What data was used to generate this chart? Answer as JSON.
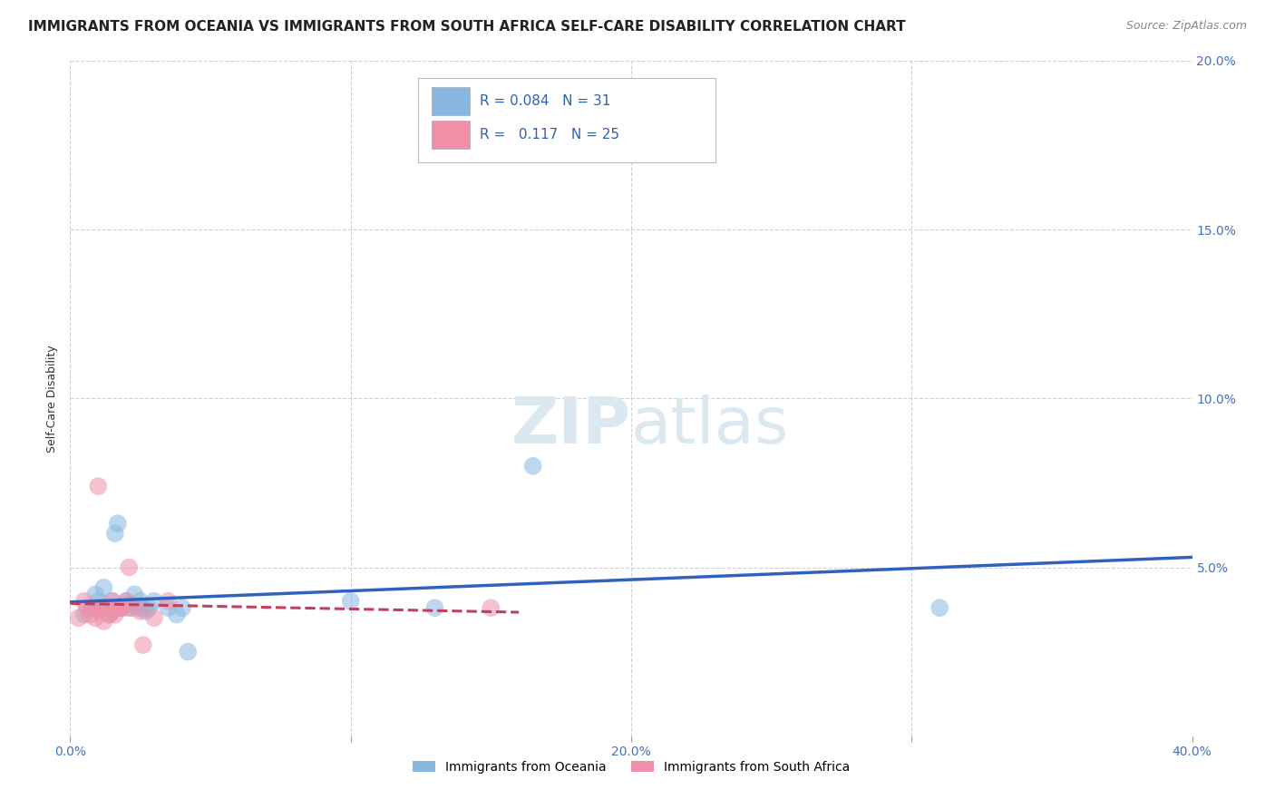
{
  "title": "IMMIGRANTS FROM OCEANIA VS IMMIGRANTS FROM SOUTH AFRICA SELF-CARE DISABILITY CORRELATION CHART",
  "source": "Source: ZipAtlas.com",
  "ylabel": "Self-Care Disability",
  "xlim": [
    0.0,
    0.4
  ],
  "ylim": [
    0.0,
    0.2
  ],
  "xticks": [
    0.0,
    0.1,
    0.2,
    0.3,
    0.4
  ],
  "yticks": [
    0.0,
    0.05,
    0.1,
    0.15,
    0.2
  ],
  "xtick_labels": [
    "0.0%",
    "",
    "20.0%",
    "",
    "40.0%"
  ],
  "ytick_labels": [
    "",
    "5.0%",
    "10.0%",
    "15.0%",
    "20.0%"
  ],
  "legend_entries": [
    {
      "label": "Immigrants from Oceania",
      "R": "0.084",
      "N": "31",
      "color": "#a8c8e8"
    },
    {
      "label": "Immigrants from South Africa",
      "R": "0.117",
      "N": "25",
      "color": "#f4a0b4"
    }
  ],
  "oceania_scatter": [
    [
      0.005,
      0.036
    ],
    [
      0.008,
      0.038
    ],
    [
      0.009,
      0.042
    ],
    [
      0.01,
      0.04
    ],
    [
      0.01,
      0.038
    ],
    [
      0.012,
      0.044
    ],
    [
      0.013,
      0.038
    ],
    [
      0.014,
      0.036
    ],
    [
      0.015,
      0.04
    ],
    [
      0.015,
      0.037
    ],
    [
      0.016,
      0.06
    ],
    [
      0.017,
      0.063
    ],
    [
      0.018,
      0.038
    ],
    [
      0.02,
      0.04
    ],
    [
      0.021,
      0.038
    ],
    [
      0.022,
      0.039
    ],
    [
      0.023,
      0.042
    ],
    [
      0.024,
      0.038
    ],
    [
      0.025,
      0.04
    ],
    [
      0.026,
      0.038
    ],
    [
      0.027,
      0.037
    ],
    [
      0.028,
      0.038
    ],
    [
      0.03,
      0.04
    ],
    [
      0.035,
      0.038
    ],
    [
      0.038,
      0.036
    ],
    [
      0.04,
      0.038
    ],
    [
      0.042,
      0.025
    ],
    [
      0.1,
      0.04
    ],
    [
      0.13,
      0.038
    ],
    [
      0.31,
      0.038
    ],
    [
      0.165,
      0.08
    ]
  ],
  "sa_scatter": [
    [
      0.003,
      0.035
    ],
    [
      0.005,
      0.04
    ],
    [
      0.006,
      0.038
    ],
    [
      0.007,
      0.036
    ],
    [
      0.008,
      0.038
    ],
    [
      0.009,
      0.035
    ],
    [
      0.01,
      0.074
    ],
    [
      0.01,
      0.037
    ],
    [
      0.011,
      0.038
    ],
    [
      0.012,
      0.034
    ],
    [
      0.013,
      0.038
    ],
    [
      0.014,
      0.036
    ],
    [
      0.015,
      0.04
    ],
    [
      0.016,
      0.036
    ],
    [
      0.017,
      0.038
    ],
    [
      0.018,
      0.038
    ],
    [
      0.019,
      0.038
    ],
    [
      0.02,
      0.04
    ],
    [
      0.021,
      0.05
    ],
    [
      0.022,
      0.038
    ],
    [
      0.025,
      0.037
    ],
    [
      0.026,
      0.027
    ],
    [
      0.03,
      0.035
    ],
    [
      0.035,
      0.04
    ],
    [
      0.15,
      0.038
    ]
  ],
  "oceania_line_color": "#3060c0",
  "sa_line_color": "#c04060",
  "scatter_oceania_color": "#88b8e0",
  "scatter_sa_color": "#f090a8",
  "background_color": "#ffffff",
  "grid_color": "#cccccc",
  "title_fontsize": 11,
  "axis_label_fontsize": 9,
  "tick_fontsize": 10,
  "source_fontsize": 9,
  "watermark_color": "#dce8f0",
  "watermark_fontsize": 52
}
